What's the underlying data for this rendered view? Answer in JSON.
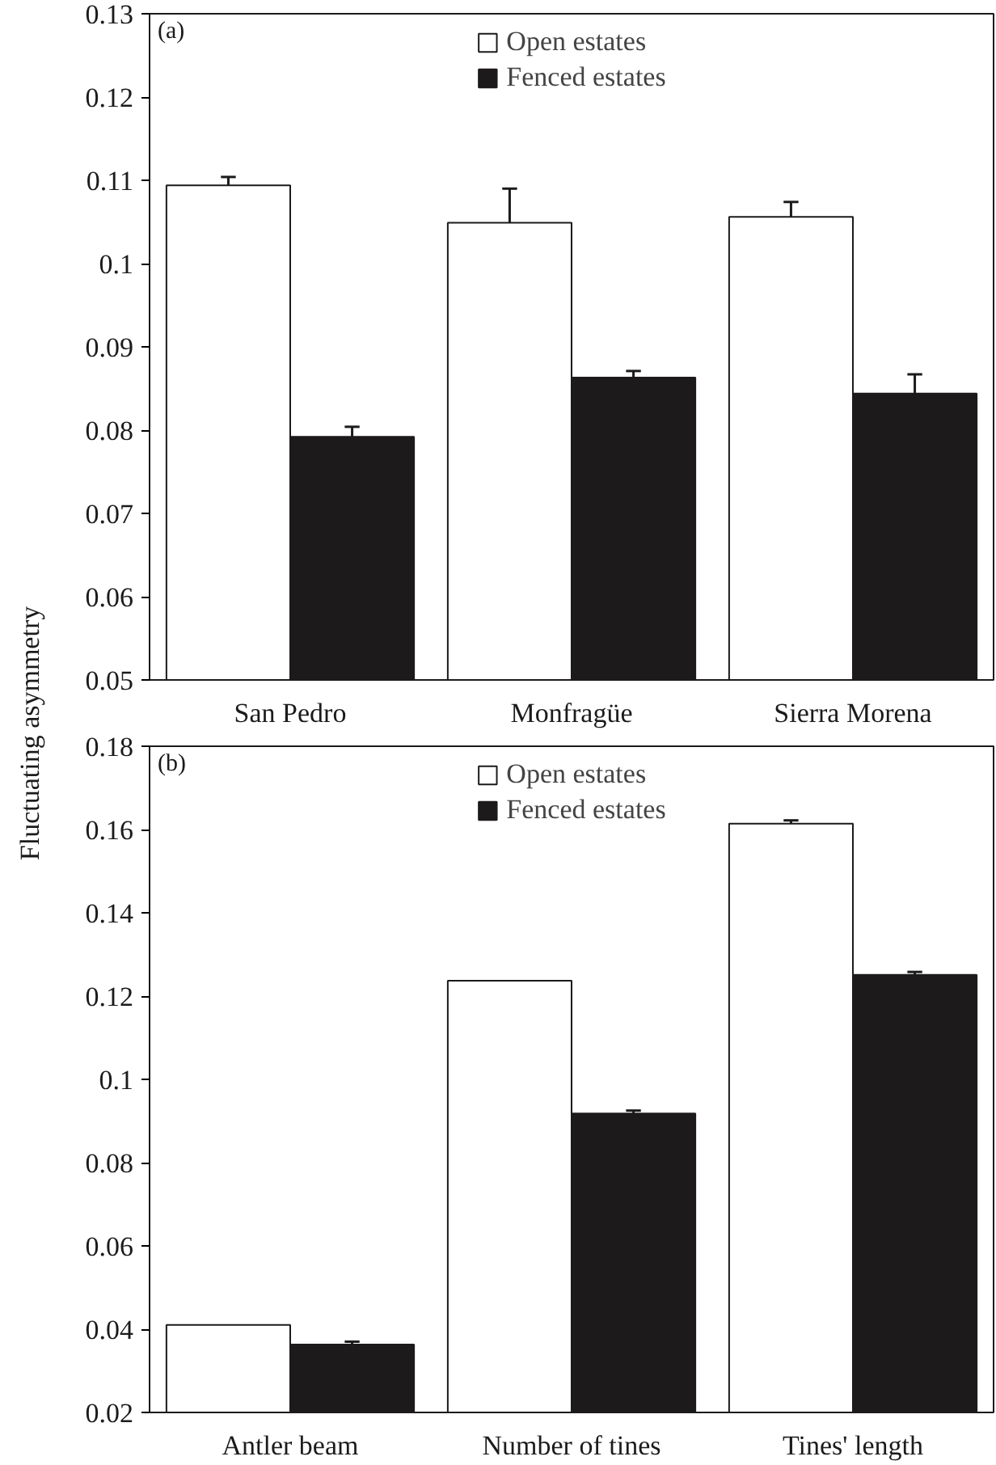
{
  "chart_data": [
    {
      "type": "bar",
      "ylabel": "Fluctuating asymmetry",
      "categories": [
        "San Pedro",
        "Monfragüe",
        "Sierra Morena"
      ],
      "series": [
        {
          "name": "Open estates",
          "color": "#ffffff",
          "values": [
            0.1094,
            0.1049,
            0.1056
          ],
          "errors": [
            [
              0.1094,
              0.1104
            ],
            [
              0.1049,
              0.109
            ],
            [
              0.1056,
              0.1074
            ]
          ]
        },
        {
          "name": "Fenced estates",
          "color": "#1c1a1b",
          "values": [
            0.0792,
            0.0863,
            0.0844
          ],
          "errors": [
            [
              0.0792,
              0.0804
            ],
            [
              0.0863,
              0.0871
            ],
            [
              0.0844,
              0.0867
            ]
          ]
        }
      ],
      "ylim": [
        0.05,
        0.13
      ],
      "yticks": [
        0.05,
        0.06,
        0.07,
        0.08,
        0.09,
        0.1,
        0.11,
        0.12,
        0.13
      ],
      "annotations": [
        "(a)"
      ],
      "legend": "top",
      "grid": false
    },
    {
      "type": "bar",
      "categories": [
        "Antler beam",
        "Number of tines",
        "Tines' length"
      ],
      "series": [
        {
          "name": "Open estates",
          "color": "#ffffff",
          "values": [
            0.041,
            0.1237,
            0.1614
          ],
          "errors": [
            null,
            null,
            [
              0.1614,
              0.1622
            ]
          ]
        },
        {
          "name": "Fenced estates",
          "color": "#1c1a1b",
          "values": [
            0.0363,
            0.0918,
            0.1251
          ],
          "errors": [
            [
              0.0363,
              0.037
            ],
            [
              0.0918,
              0.0925
            ],
            [
              0.1251,
              0.1258
            ]
          ]
        }
      ],
      "ylim": [
        0.02,
        0.18
      ],
      "yticks": [
        0.02,
        0.04,
        0.06,
        0.08,
        0.1,
        0.12,
        0.14,
        0.16,
        0.18
      ],
      "annotations": [
        "(b)"
      ],
      "legend": "top",
      "grid": false
    }
  ]
}
